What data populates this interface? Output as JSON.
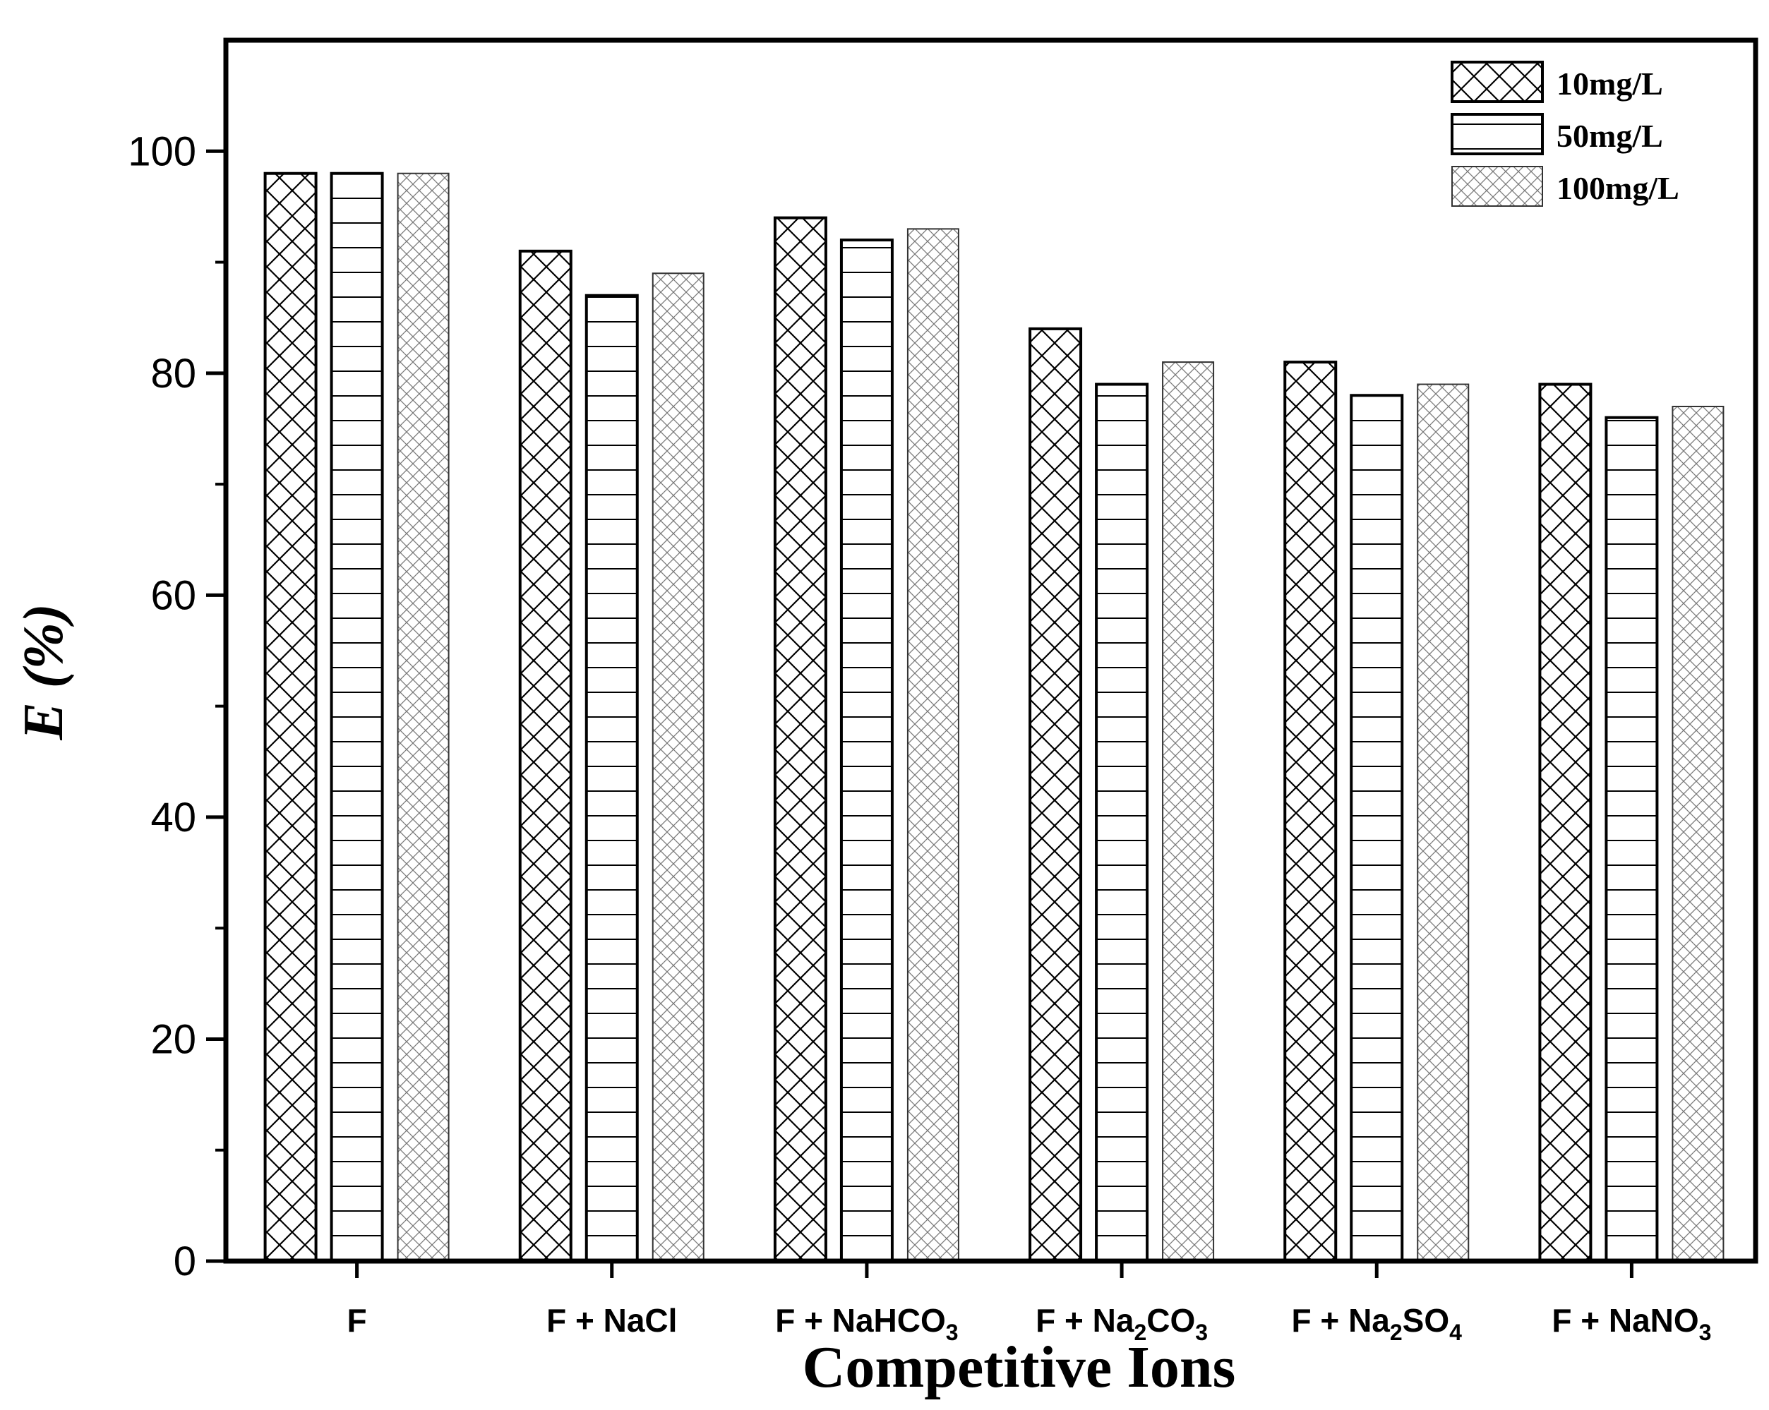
{
  "chart_data": {
    "type": "bar",
    "xlabel": "Competitive Ions",
    "ylabel_main": "E",
    "ylabel_unit": " (%)",
    "ylim": [
      0,
      110
    ],
    "yticks": [
      0,
      20,
      40,
      60,
      80,
      100
    ],
    "grid": false,
    "legend_position": "top-right",
    "categories": [
      {
        "parts": [
          {
            "t": "F"
          }
        ]
      },
      {
        "parts": [
          {
            "t": "F + NaCl"
          }
        ]
      },
      {
        "parts": [
          {
            "t": "F + NaHCO"
          },
          {
            "t": "3",
            "sub": true
          }
        ]
      },
      {
        "parts": [
          {
            "t": "F + Na"
          },
          {
            "t": "2",
            "sub": true
          },
          {
            "t": "CO"
          },
          {
            "t": "3",
            "sub": true
          }
        ]
      },
      {
        "parts": [
          {
            "t": "F + Na"
          },
          {
            "t": "2",
            "sub": true
          },
          {
            "t": "SO"
          },
          {
            "t": "4",
            "sub": true
          }
        ]
      },
      {
        "parts": [
          {
            "t": "F + NaNO"
          },
          {
            "t": "3",
            "sub": true
          }
        ]
      }
    ],
    "series": [
      {
        "name": "10mg/L",
        "pattern": "crosshatch-coarse",
        "values": [
          98,
          91,
          94,
          84,
          81,
          79
        ]
      },
      {
        "name": "50mg/L",
        "pattern": "horizontal-lines",
        "values": [
          98,
          87,
          92,
          79,
          78,
          76
        ]
      },
      {
        "name": "100mg/L",
        "pattern": "crosshatch-fine",
        "values": [
          98,
          89,
          93,
          81,
          79,
          77
        ]
      }
    ]
  }
}
